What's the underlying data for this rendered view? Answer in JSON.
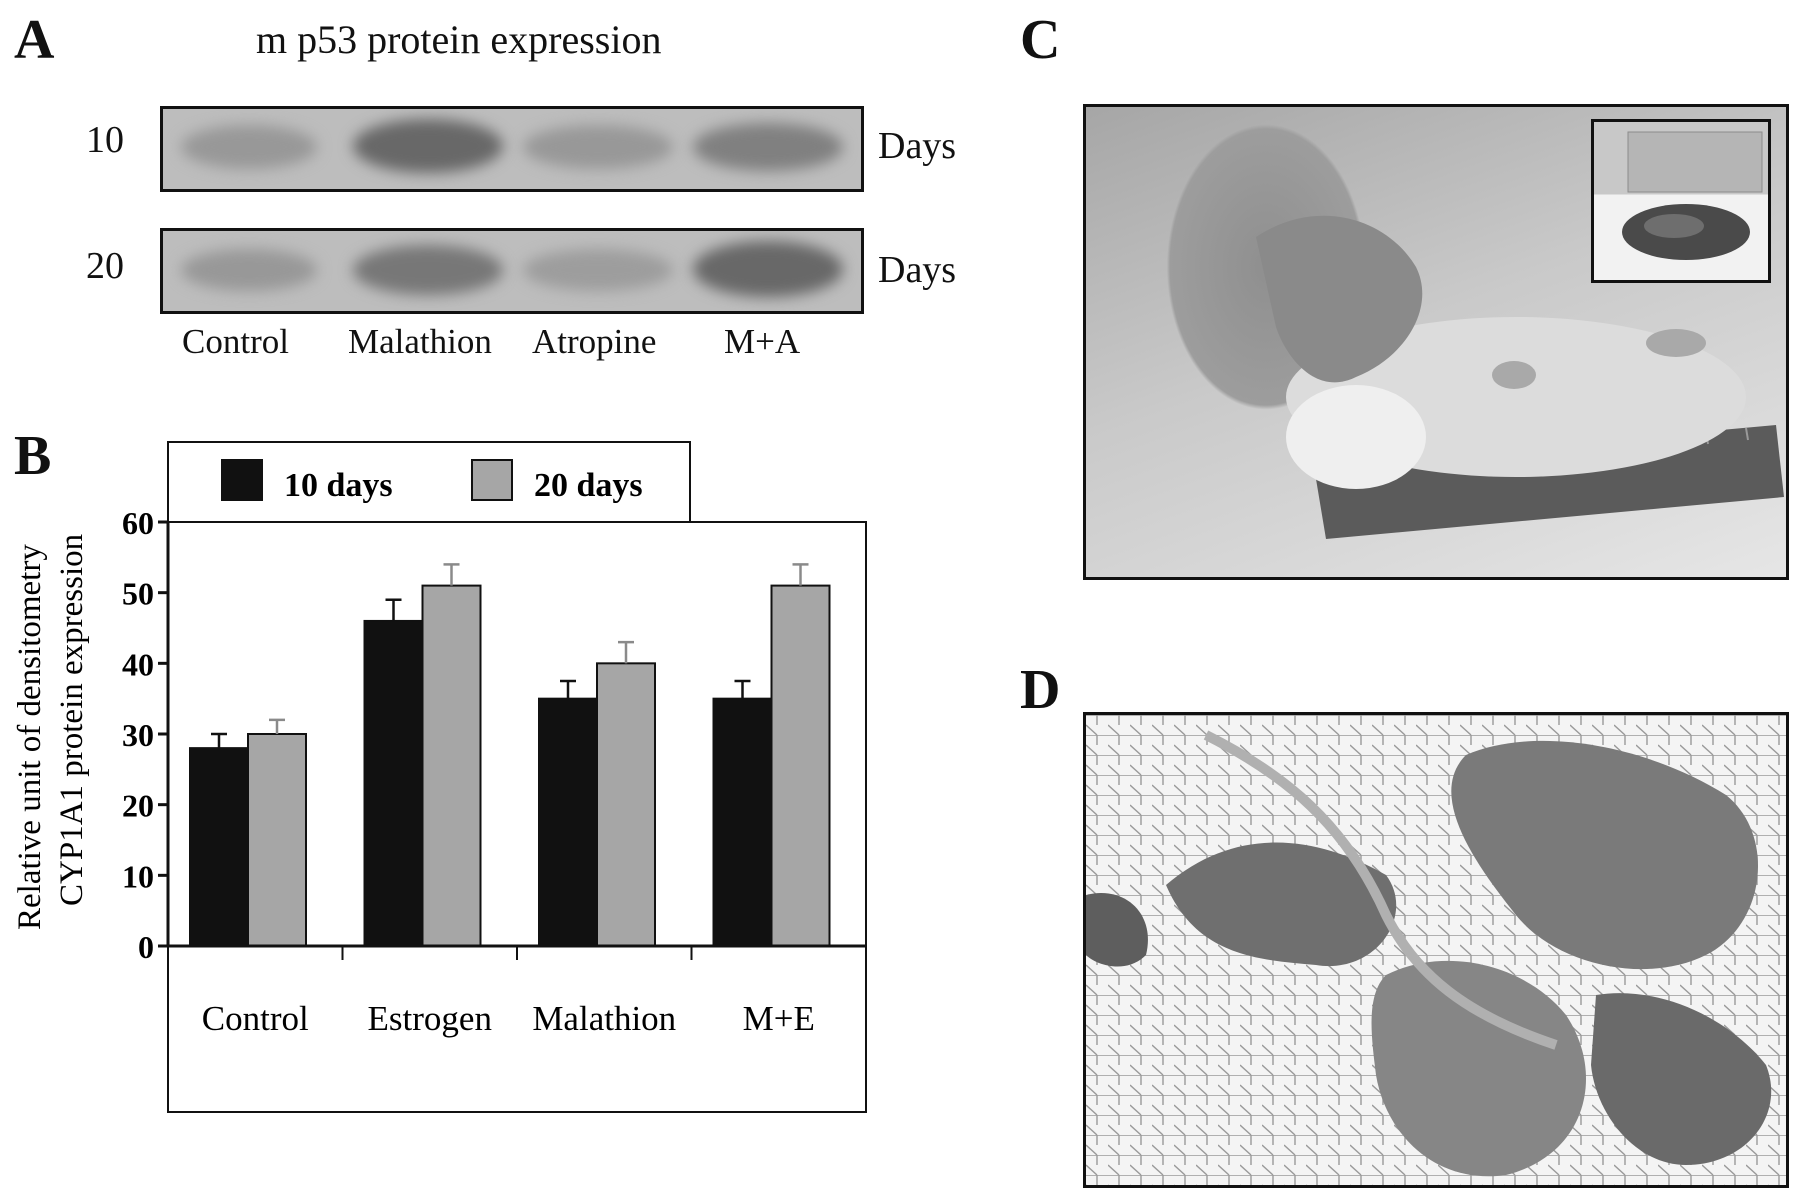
{
  "panel_a": {
    "letter": "A",
    "title": "m p53 protein expression",
    "rows": [
      {
        "label": "10",
        "unit": "Days",
        "band_intensity": [
          0.35,
          0.85,
          0.35,
          0.6
        ]
      },
      {
        "label": "20",
        "unit": "Days",
        "band_intensity": [
          0.35,
          0.7,
          0.3,
          0.85
        ]
      }
    ],
    "lanes": [
      "Control",
      "Malathion",
      "Atropine",
      "M+A"
    ]
  },
  "panel_b": {
    "letter": "B"
  },
  "panel_c": {
    "letter": "C"
  },
  "panel_d": {
    "letter": "D"
  },
  "chart_data": {
    "type": "bar",
    "categories": [
      "Control",
      "Estrogen",
      "Malathion",
      "M+E"
    ],
    "series": [
      {
        "name": "10 days",
        "values": [
          28,
          46,
          35,
          35
        ],
        "errors": [
          2,
          3,
          2.5,
          2.5
        ],
        "color": "#111111"
      },
      {
        "name": "20 days",
        "values": [
          30,
          51,
          40,
          51
        ],
        "errors": [
          2,
          3,
          3,
          3
        ],
        "color": "#a6a6a6"
      }
    ],
    "ylabel_line1": "Relative unit of densitometry",
    "ylabel_line2": "CYP1A1 protein expression",
    "ylim": [
      0,
      60
    ],
    "yticks": [
      0,
      10,
      20,
      30,
      40,
      50,
      60
    ],
    "legend_position": "top",
    "grid": false
  }
}
